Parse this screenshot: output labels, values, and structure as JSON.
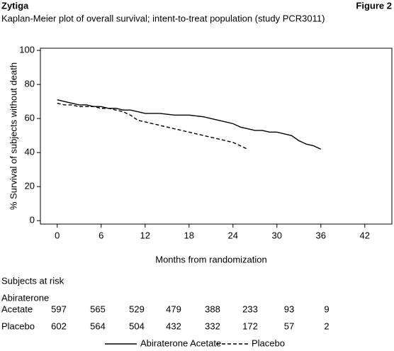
{
  "header": {
    "left": "Zytiga",
    "right": "Figure 2"
  },
  "chart_data": {
    "type": "line",
    "title": "Kaplan-Meier plot of overall survival; intent-to-treat population (study PCR3011)",
    "x_label": "Months from randomization",
    "y_label": "% Survival of subjects without death",
    "x": [
      0,
      1,
      2,
      3,
      4,
      5,
      6,
      7,
      8,
      9,
      10,
      11,
      12,
      14,
      16,
      18,
      20,
      21,
      22,
      23,
      24,
      25,
      26,
      27,
      28,
      29,
      30,
      31,
      32,
      33,
      34,
      35,
      36
    ],
    "series": [
      {
        "name": "Abiraterone Acetate",
        "color": "#000000",
        "line_style": "solid",
        "values": [
          71,
          70,
          69,
          68,
          68,
          67,
          67,
          66,
          66,
          65,
          65,
          64,
          63,
          63,
          62,
          62,
          61,
          60,
          59,
          58,
          57,
          55,
          54,
          53,
          53,
          52,
          52,
          51,
          50,
          47,
          45,
          44,
          42
        ]
      },
      {
        "name": "Placebo",
        "color": "#000000",
        "line_style": "dashed",
        "values": [
          69,
          68,
          68,
          67,
          67,
          67,
          66,
          66,
          65,
          64,
          62,
          59,
          58,
          56,
          54,
          52,
          50,
          49,
          48,
          47,
          46,
          44,
          42,
          null,
          null,
          null,
          null,
          null,
          null,
          null,
          null,
          null,
          null
        ]
      }
    ],
    "xlim": [
      -2.3,
      45.7
    ],
    "ylim": [
      -2,
      101.3
    ],
    "xticks": [
      0,
      6,
      12,
      18,
      24,
      30,
      36,
      42
    ],
    "yticks": [
      0,
      20,
      40,
      60,
      80,
      100
    ],
    "grid": false
  },
  "risk_table": {
    "title": "Subjects at risk",
    "rows": [
      {
        "label_lines": [
          "Abiraterone",
          "Acetate"
        ],
        "values": [
          597,
          565,
          529,
          479,
          388,
          233,
          93,
          9
        ]
      },
      {
        "label_lines": [
          "Placebo"
        ],
        "values": [
          602,
          564,
          504,
          432,
          332,
          172,
          57,
          2
        ]
      }
    ]
  }
}
